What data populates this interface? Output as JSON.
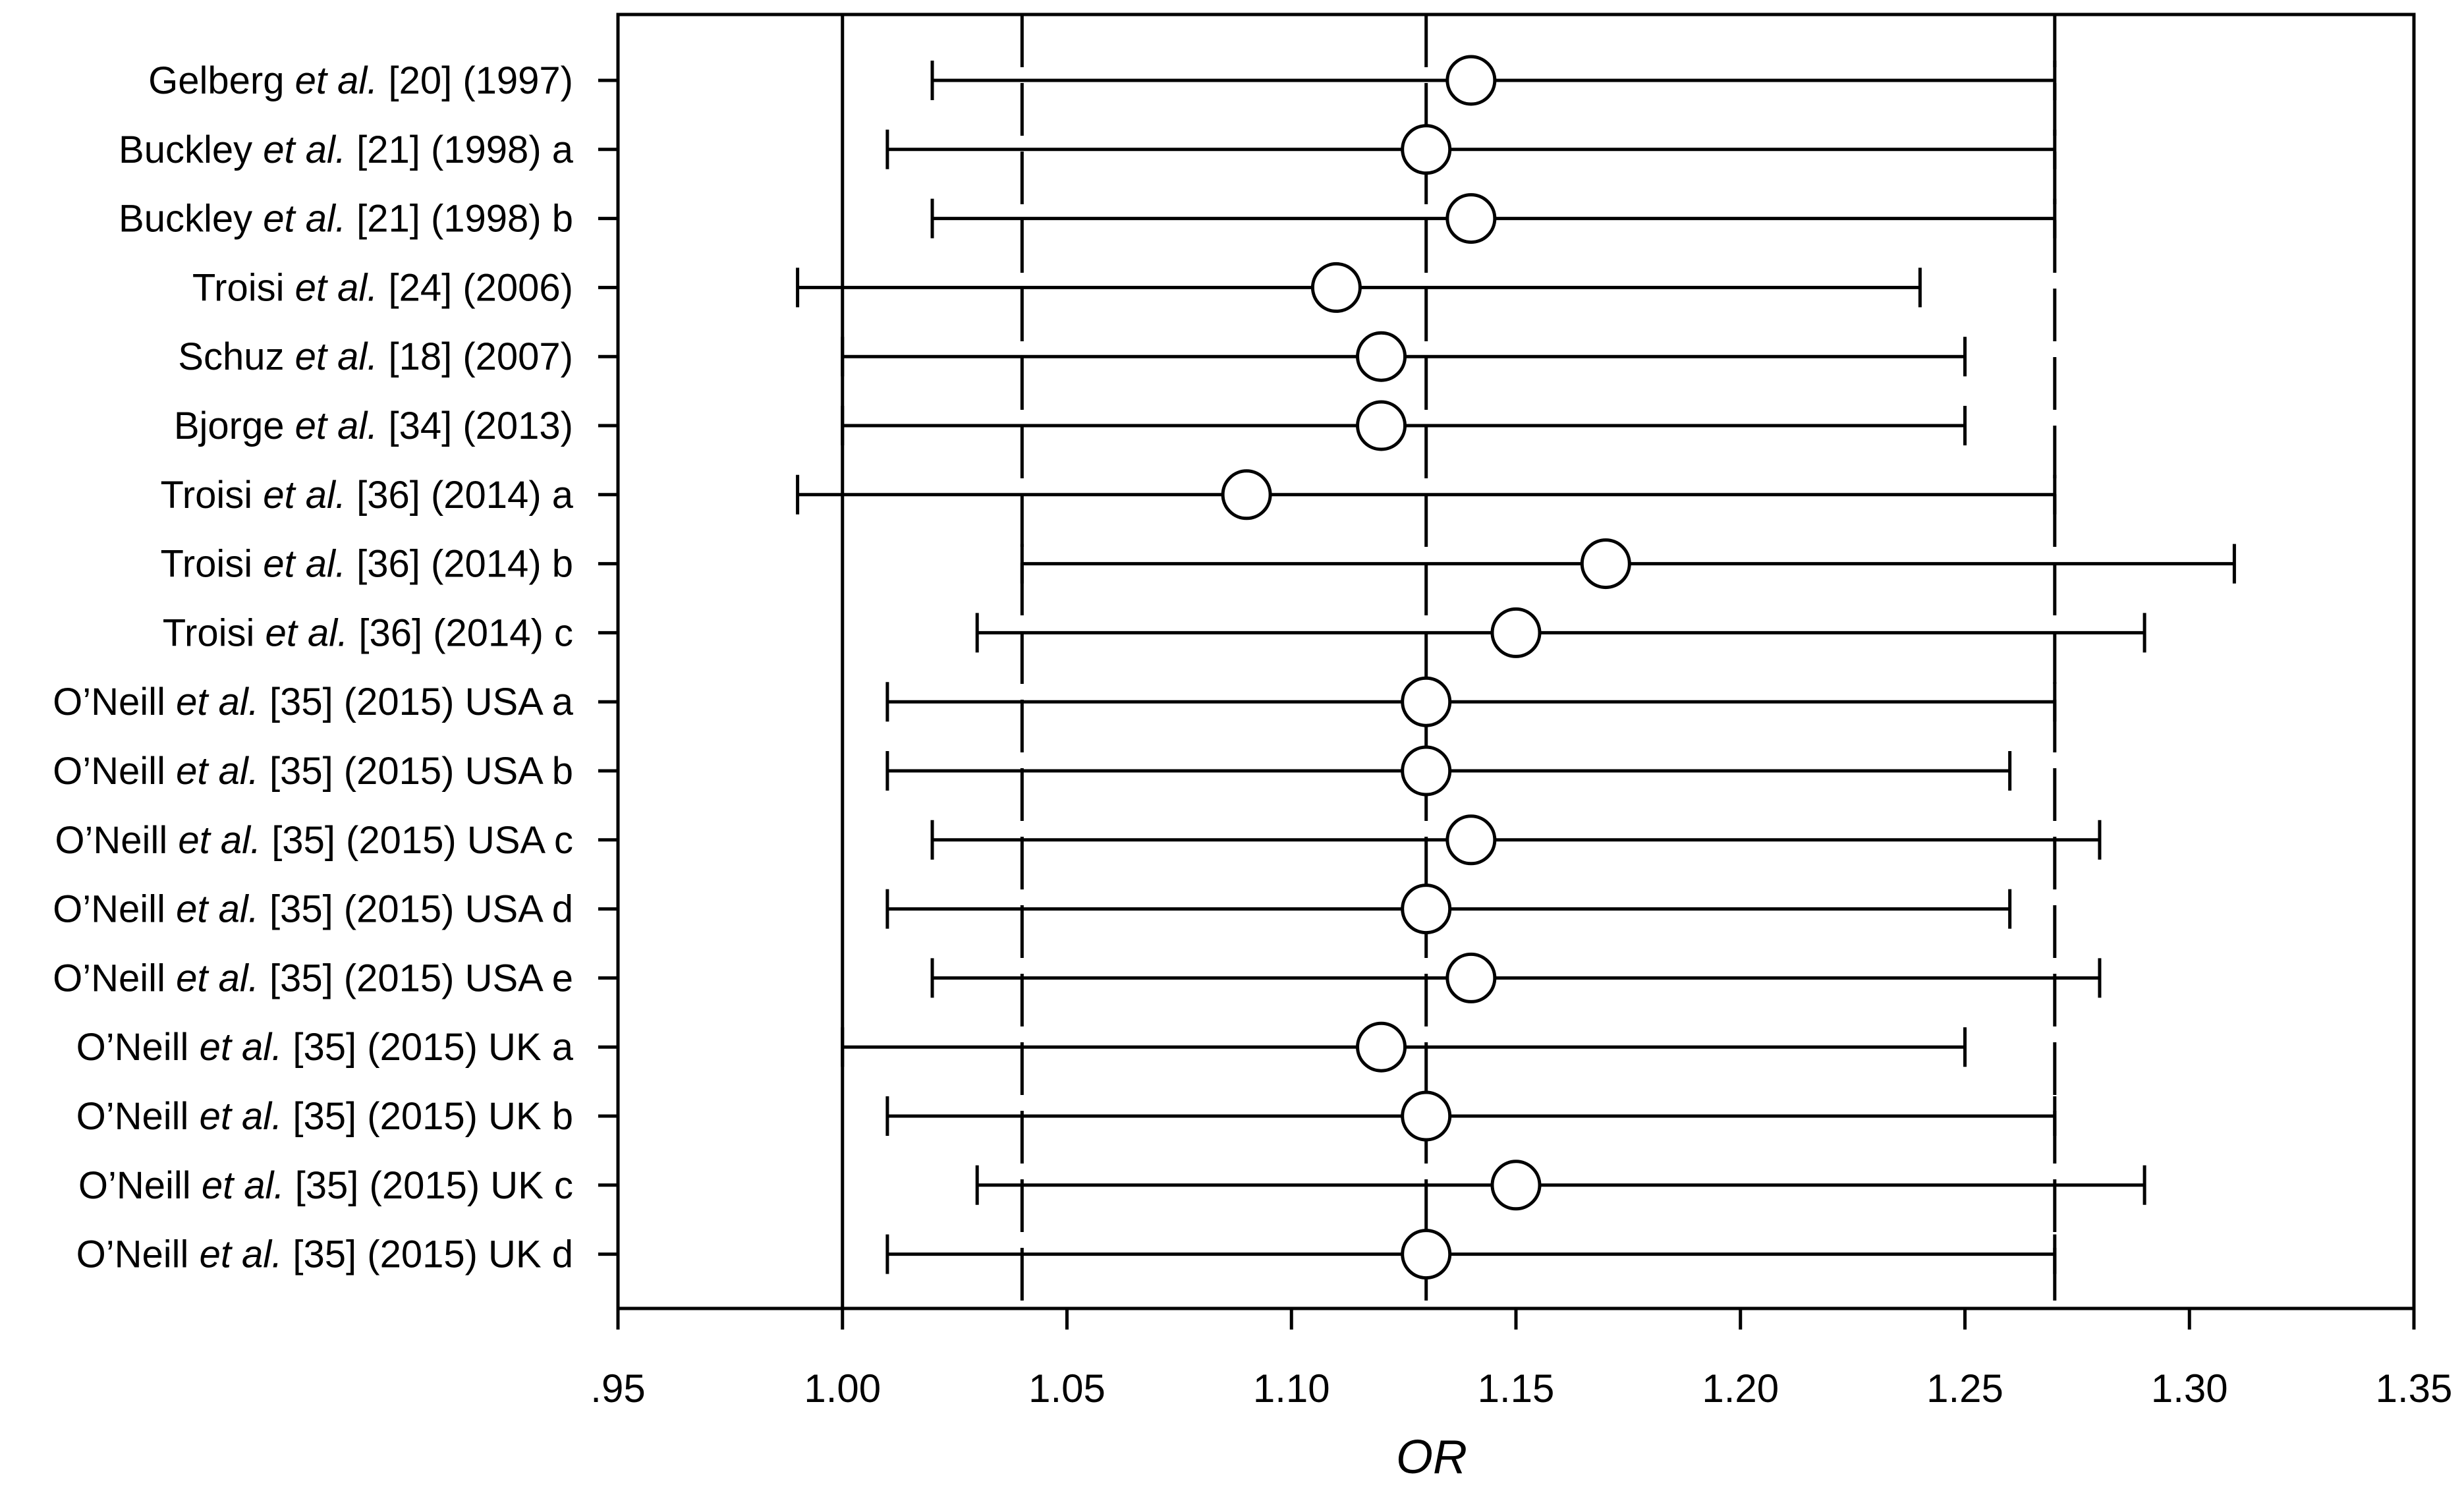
{
  "chart_data": {
    "type": "forest",
    "xlabel": "OR",
    "xlim": [
      0.95,
      1.35
    ],
    "x_ticks": [
      0.95,
      1.0,
      1.05,
      1.1,
      1.15,
      1.2,
      1.25,
      1.3,
      1.35
    ],
    "x_tick_labels": [
      ".95",
      "1.00",
      "1.05",
      "1.10",
      "1.15",
      "1.20",
      "1.25",
      "1.30",
      "1.35"
    ],
    "reference_lines": [
      {
        "x": 1.0,
        "style": "solid"
      },
      {
        "x": 1.04,
        "style": "dashed"
      },
      {
        "x": 1.13,
        "style": "dashed"
      },
      {
        "x": 1.27,
        "style": "dashed"
      }
    ],
    "studies": [
      {
        "author": "Gelberg",
        "rest": " [20] (1997)",
        "or": 1.14,
        "lo": 1.02,
        "hi": 1.27
      },
      {
        "author": "Buckley",
        "rest": " [21] (1998) a",
        "or": 1.13,
        "lo": 1.01,
        "hi": 1.27
      },
      {
        "author": "Buckley",
        "rest": " [21] (1998) b",
        "or": 1.14,
        "lo": 1.02,
        "hi": 1.27
      },
      {
        "author": "Troisi",
        "rest": " [24] (2006)",
        "or": 1.11,
        "lo": 0.99,
        "hi": 1.24
      },
      {
        "author": "Schuz",
        "rest": " [18] (2007)",
        "or": 1.12,
        "lo": 1.0,
        "hi": 1.25
      },
      {
        "author": "Bjorge",
        "rest": " [34] (2013)",
        "or": 1.12,
        "lo": 1.0,
        "hi": 1.25
      },
      {
        "author": "Troisi",
        "rest": " [36] (2014) a",
        "or": 1.09,
        "lo": 0.99,
        "hi": 1.27
      },
      {
        "author": "Troisi",
        "rest": " [36] (2014) b",
        "or": 1.17,
        "lo": 1.04,
        "hi": 1.31
      },
      {
        "author": "Troisi",
        "rest": " [36] (2014) c",
        "or": 1.15,
        "lo": 1.03,
        "hi": 1.29
      },
      {
        "author": "O’Neill",
        "rest": " [35] (2015) USA a",
        "or": 1.13,
        "lo": 1.01,
        "hi": 1.27
      },
      {
        "author": "O’Neill",
        "rest": " [35] (2015) USA b",
        "or": 1.13,
        "lo": 1.01,
        "hi": 1.26
      },
      {
        "author": "O’Neill",
        "rest": " [35] (2015) USA c",
        "or": 1.14,
        "lo": 1.02,
        "hi": 1.28
      },
      {
        "author": "O’Neill",
        "rest": " [35] (2015) USA d",
        "or": 1.13,
        "lo": 1.01,
        "hi": 1.26
      },
      {
        "author": "O’Neill",
        "rest": " [35] (2015) USA e",
        "or": 1.14,
        "lo": 1.02,
        "hi": 1.28
      },
      {
        "author": "O’Neill",
        "rest": " [35] (2015) UK a",
        "or": 1.12,
        "lo": 1.0,
        "hi": 1.25
      },
      {
        "author": "O’Neill",
        "rest": " [35] (2015) UK b",
        "or": 1.13,
        "lo": 1.01,
        "hi": 1.27
      },
      {
        "author": "O’Neill",
        "rest": " [35] (2015) UK c",
        "or": 1.15,
        "lo": 1.03,
        "hi": 1.29
      },
      {
        "author": "O’Neill",
        "rest": " [35] (2015) UK d",
        "or": 1.13,
        "lo": 1.01,
        "hi": 1.27
      }
    ],
    "et_al": " et al.",
    "marker": "open-circle",
    "grid": false
  }
}
